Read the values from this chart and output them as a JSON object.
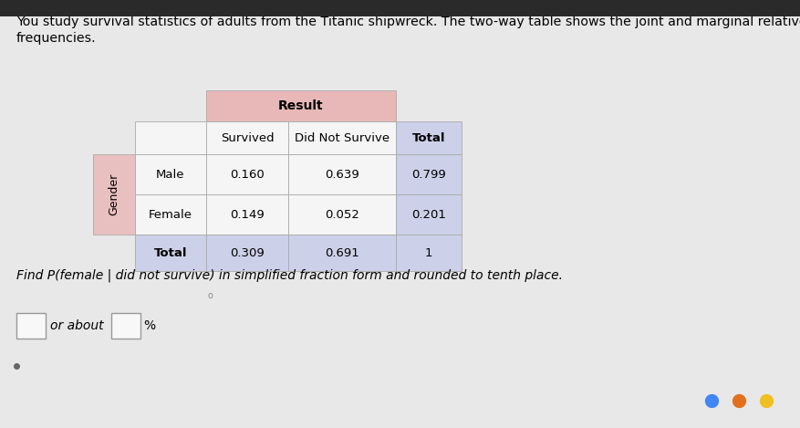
{
  "title_line1": "You study survival statistics of adults from the Titanic shipwreck. The two-way table shows the joint and marginal relative",
  "title_line2": "frequencies.",
  "table": {
    "col_headers": [
      "Survived",
      "Did Not Survive",
      "Total"
    ],
    "row_headers": [
      "Male",
      "Female",
      "Total"
    ],
    "values": [
      [
        "0.160",
        "0.639",
        "0.799"
      ],
      [
        "0.149",
        "0.052",
        "0.201"
      ],
      [
        "0.309",
        "0.691",
        "1"
      ]
    ],
    "group_header": "Result",
    "row_group_header": "Gender"
  },
  "question_text": "Find P(female | did not survive) in simplified fraction form and rounded to tenth place.",
  "answer_line": "or about",
  "answer_suffix": "%",
  "bg_color": "#d8d8d8",
  "page_bg": "#e8e8e8",
  "header_bg_color": "#e8c0c0",
  "data_bg_color": "#f0f0f0",
  "total_bg_color": "#ccd0e8",
  "result_header_bg": "#e8b8b8",
  "white": "#f8f8f8",
  "cell_white": "#f5f5f5",
  "border_color": "#b0b0b0"
}
